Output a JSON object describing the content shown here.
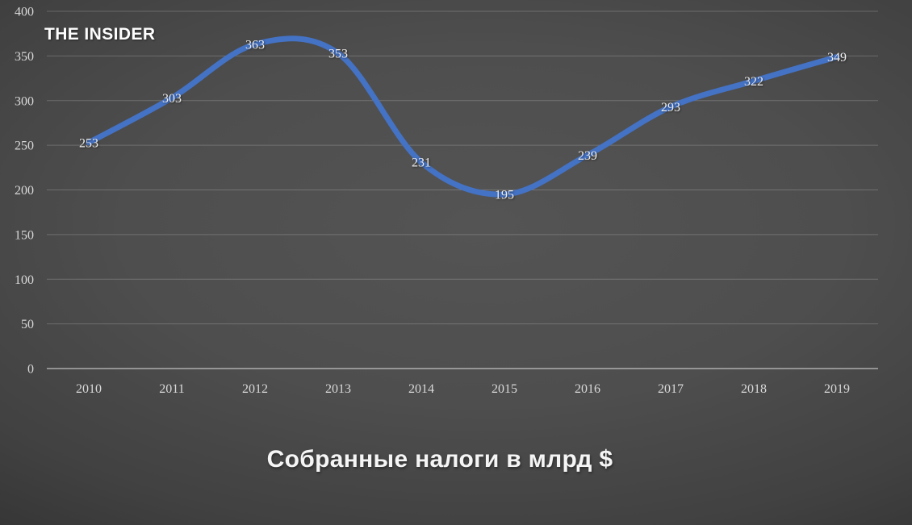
{
  "logo": "THE INSIDER",
  "title": "Собранные налоги в млрд $",
  "colors": {
    "line": "#4472c4",
    "data_label": "#ededed",
    "axis_label": "#d9d9d9",
    "gridline": "rgba(255,255,255,0.20)",
    "axis_line": "rgba(255,255,255,0.55)",
    "background_center": "#4e4e4e",
    "background_edge": "#1d1d1d"
  },
  "chart_data": {
    "type": "line",
    "title": "Собранные налоги в млрд $",
    "xlabel": "",
    "ylabel": "",
    "categories": [
      "2010",
      "2011",
      "2012",
      "2013",
      "2014",
      "2015",
      "2016",
      "2017",
      "2018",
      "2019"
    ],
    "series": [
      {
        "name": "Собранные налоги в млрд $",
        "values": [
          253,
          303,
          363,
          353,
          231,
          195,
          239,
          293,
          322,
          349
        ]
      }
    ],
    "data_labels": "center",
    "ylim": [
      0,
      400
    ],
    "ytick_step": 50,
    "yticks": [
      0,
      50,
      100,
      150,
      200,
      250,
      300,
      350,
      400
    ],
    "grid": "horizontal",
    "legend": "none",
    "line_smoothing": true
  }
}
